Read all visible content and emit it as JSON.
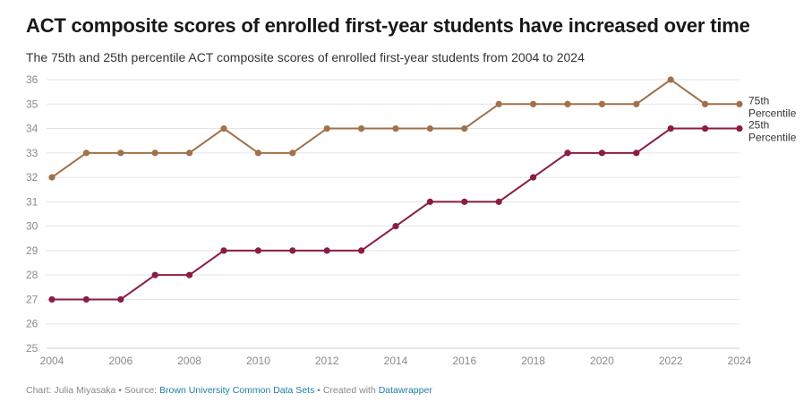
{
  "header": {
    "title": "ACT composite scores of enrolled first-year students have increased over time",
    "subtitle": "The 75th and 25th percentile ACT composite scores of enrolled first-year students from 2004 to 2024"
  },
  "footer": {
    "chart_prefix": "Chart: ",
    "author": "Julia Miyasaka",
    "sep1": " • Source: ",
    "source": "Brown University Common Data Sets",
    "sep2": " • Created with ",
    "tool": "Datawrapper"
  },
  "colors": {
    "p75": "#a0714a",
    "p25": "#8a1c45",
    "grid": "#e4e4e4",
    "axis_text": "#8a8a8a",
    "label_text": "#333333"
  },
  "chart_data": {
    "type": "line",
    "title": "ACT composite scores of enrolled first-year students have increased over time",
    "subtitle": "The 75th and 25th percentile ACT composite scores of enrolled first-year students from 2004 to 2024",
    "x": [
      2004,
      2005,
      2006,
      2007,
      2008,
      2009,
      2010,
      2011,
      2012,
      2013,
      2014,
      2015,
      2016,
      2017,
      2018,
      2019,
      2020,
      2021,
      2022,
      2023,
      2024
    ],
    "series": [
      {
        "name": "75th Percentile",
        "label_lines": [
          "75th",
          "Percentile"
        ],
        "color": "#a0714a",
        "values": [
          32,
          33,
          33,
          33,
          33,
          34,
          33,
          33,
          34,
          34,
          34,
          34,
          34,
          35,
          35,
          35,
          35,
          35,
          36,
          35,
          35
        ]
      },
      {
        "name": "25th Percentile",
        "label_lines": [
          "25th",
          "Percentile"
        ],
        "color": "#8a1c45",
        "values": [
          27,
          27,
          27,
          28,
          28,
          29,
          29,
          29,
          29,
          29,
          30,
          31,
          31,
          31,
          32,
          33,
          33,
          33,
          34,
          34,
          34
        ]
      }
    ],
    "xlim": [
      2004,
      2024
    ],
    "ylim": [
      25,
      36
    ],
    "x_ticks": [
      2004,
      2006,
      2008,
      2010,
      2012,
      2014,
      2016,
      2018,
      2020,
      2022,
      2024
    ],
    "y_ticks": [
      25,
      26,
      27,
      28,
      29,
      30,
      31,
      32,
      33,
      34,
      35,
      36
    ],
    "grid": true,
    "legend": "direct labels at right end of lines"
  }
}
